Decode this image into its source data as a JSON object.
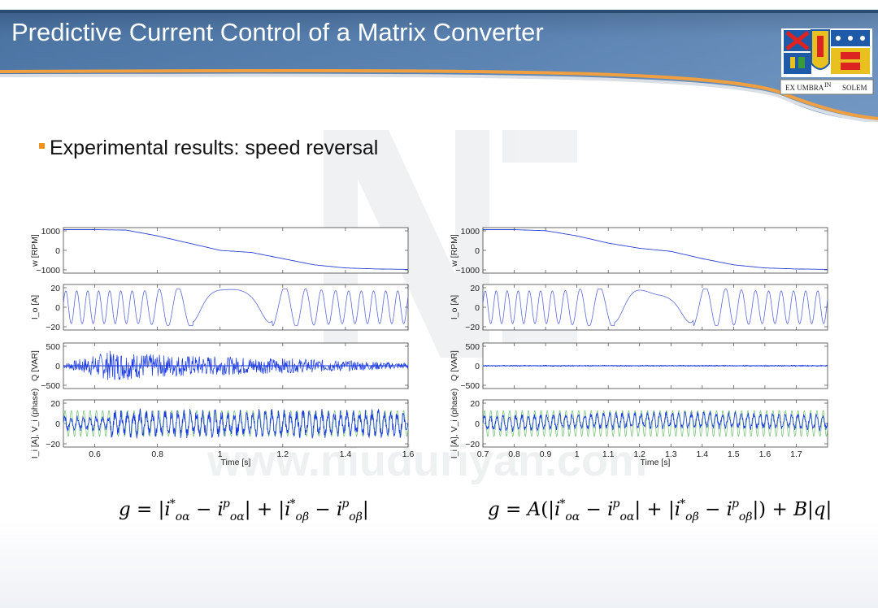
{
  "slide": {
    "title": "Predictive Current Control of a Matrix Converter",
    "bullet": "Experimental results: speed reversal",
    "watermark": "www.niuduriyan.com",
    "logo_left_text": "EX UMBRA",
    "logo_mid_text": "IN",
    "logo_right_text": "SOLEM",
    "colors": {
      "header_blue": "#4d76a6",
      "header_dark": "#2e4e74",
      "accent": "#f0931e",
      "trace_blue": "#1a3ae0",
      "trace_green": "#7bc47b"
    },
    "formula_left": "g = |i*oα − ipoα| + |i*oβ − ipoβ|",
    "formula_right": "g = A(|i*oα − ipoα| + |i*oβ − ipoβ|) + B|q|"
  },
  "chart_data": [
    {
      "type": "line",
      "title": "",
      "xlabel": "Time [s]",
      "xlim": [
        0.5,
        1.6
      ],
      "xticks": [
        "0.6",
        "0.8",
        "1",
        "1.2",
        "1.4",
        "1.6"
      ],
      "panels": [
        {
          "ylabel": "w [RPM]",
          "yticks": [
            "1000",
            "0",
            "−1000"
          ],
          "ylim": [
            -1100,
            1100
          ],
          "series": [
            {
              "x": [
                0.5,
                0.6,
                0.7,
                0.8,
                0.9,
                1.0,
                1.1,
                1.2,
                1.3,
                1.4,
                1.5,
                1.6
              ],
              "y": [
                1000,
                1000,
                980,
                700,
                350,
                0,
                -100,
                -400,
                -700,
                -850,
                -900,
                -920
              ]
            }
          ]
        },
        {
          "ylabel": "I_o [A]",
          "yticks": [
            "20",
            "0",
            "−20"
          ],
          "ylim": [
            -25,
            25
          ],
          "series": [
            {
              "x": [
                0.5,
                1.6
              ],
              "y": [
                0,
                0
              ],
              "amplitude": [
                10,
                20
              ],
              "shape": "modulated sine"
            }
          ]
        },
        {
          "ylabel": "Q [VAR]",
          "yticks": [
            "500",
            "0",
            "−500"
          ],
          "ylim": [
            -600,
            600
          ],
          "series": [
            {
              "x": [
                0.5,
                0.65,
                0.8,
                1.2,
                1.6
              ],
              "y_amplitude": [
                60,
                400,
                300,
                200,
                80
              ],
              "shape": "noise"
            }
          ]
        },
        {
          "ylabel": "I_i [A], V_i (phase)",
          "yticks": [
            "20",
            "0",
            "−20"
          ],
          "ylim": [
            -22,
            22
          ],
          "series": [
            {
              "name": "",
              "x": [
                0.5,
                1.6
              ],
              "amplitude": [
                6,
                10
              ],
              "shape": "sine"
            }
          ]
        }
      ]
    },
    {
      "type": "line",
      "title": "",
      "xlabel": "Time [s]",
      "xlim": [
        0.7,
        1.8
      ],
      "xticks": [
        "0.7",
        "0.8",
        "0.9",
        "1",
        "1.1",
        "1.2",
        "1.3",
        "1.4",
        "1.5",
        "1.6",
        "1.7"
      ],
      "panels": [
        {
          "ylabel": "w [RPM]",
          "yticks": [
            "1000",
            "0",
            "−1000"
          ],
          "ylim": [
            -1100,
            1100
          ],
          "series": [
            {
              "x": [
                0.7,
                0.8,
                0.9,
                1.0,
                1.1,
                1.2,
                1.3,
                1.4,
                1.5,
                1.6,
                1.7,
                1.8
              ],
              "y": [
                1000,
                1000,
                950,
                700,
                350,
                100,
                -50,
                -400,
                -700,
                -850,
                -900,
                -920
              ]
            }
          ]
        },
        {
          "ylabel": "I_o [A]",
          "yticks": [
            "20",
            "0",
            "−20"
          ],
          "ylim": [
            -25,
            25
          ],
          "series": [
            {
              "x": [
                0.7,
                1.8
              ],
              "y": [
                0,
                0
              ],
              "amplitude": [
                10,
                20
              ],
              "shape": "modulated sine"
            }
          ]
        },
        {
          "ylabel": "Q [VAR]",
          "yticks": [
            "500",
            "0",
            "−500"
          ],
          "ylim": [
            -600,
            600
          ],
          "series": [
            {
              "x": [
                0.7,
                1.8
              ],
              "y_amplitude": [
                15,
                15
              ],
              "shape": "noise"
            }
          ]
        },
        {
          "ylabel": "I_i [A], V_i (phase)",
          "yticks": [
            "20",
            "0",
            "−20"
          ],
          "ylim": [
            -22,
            22
          ],
          "series": [
            {
              "name": "",
              "x": [
                0.7,
                1.8
              ],
              "amplitude": [
                5,
                8
              ],
              "shape": "sine"
            }
          ]
        }
      ]
    }
  ]
}
